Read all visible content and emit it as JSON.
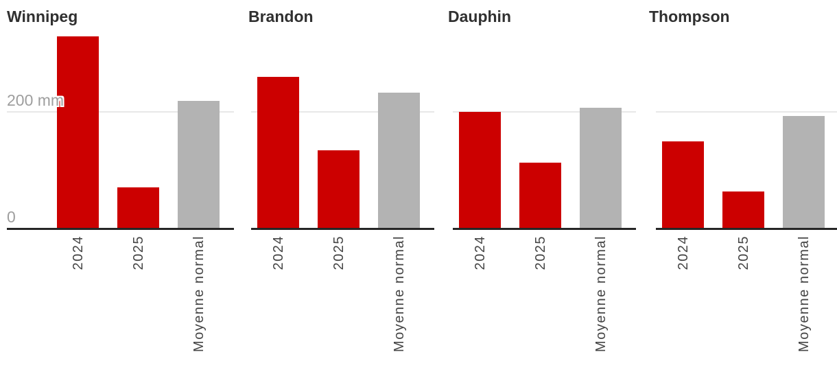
{
  "chart_data": {
    "type": "bar",
    "categories": [
      "2024",
      "2025",
      "Moyenne normal"
    ],
    "unit": "mm",
    "panels": [
      {
        "title": "Winnipeg",
        "values": [
          328,
          69,
          218
        ]
      },
      {
        "title": "Brandon",
        "values": [
          259,
          133,
          232
        ]
      },
      {
        "title": "Dauphin",
        "values": [
          199,
          112,
          206
        ]
      },
      {
        "title": "Thompson",
        "values": [
          148,
          62,
          192
        ]
      }
    ],
    "yticks": [
      {
        "value": 200,
        "label": "200 mm"
      },
      {
        "value": 0,
        "label": "0"
      }
    ],
    "ylim": [
      0,
      395
    ],
    "grid": {
      "lines_at": [
        200
      ],
      "visible": true
    },
    "legend_position": "none",
    "bar_colors": [
      "#cc0000",
      "#cc0000",
      "#b3b3b3"
    ]
  },
  "colors": {
    "bar_red": "#cc0000",
    "bar_gray": "#b3b3b3",
    "axis": "#262626",
    "gridline": "#e8e8e8",
    "title_text": "#303030",
    "x_tick_text": "#444444",
    "y_tick_text": "#9e9e9e",
    "background": "#ffffff"
  }
}
